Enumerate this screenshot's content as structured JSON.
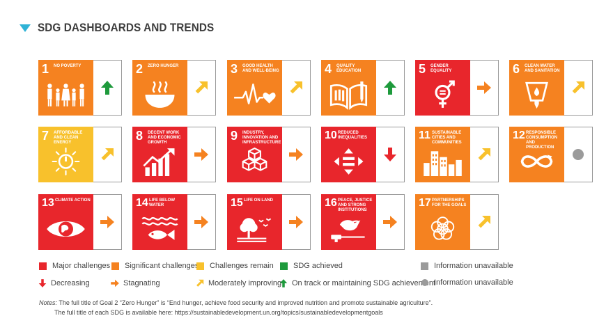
{
  "header": {
    "title": "SDG DASHBOARDS AND TRENDS"
  },
  "colors": {
    "red": "#e8262c",
    "orange": "#f58220",
    "yellow": "#f8c12c",
    "green": "#1e9a3c",
    "grey": "#9b9b9b",
    "sdg1": "#e5243b",
    "sdg2": "#dda63a",
    "sdg3": "#4c9f38",
    "accent": "#2fb3d6"
  },
  "goals": [
    {
      "num": "1",
      "label": "NO POVERTY",
      "status": "orange",
      "trend": "up",
      "icon": "family-icon"
    },
    {
      "num": "2",
      "label": "ZERO HUNGER",
      "status": "orange",
      "trend": "moderate",
      "icon": "bowl-icon"
    },
    {
      "num": "3",
      "label": "GOOD HEALTH AND WELL-BEING",
      "status": "orange",
      "trend": "moderate",
      "icon": "heartbeat-icon"
    },
    {
      "num": "4",
      "label": "QUALITY EDUCATION",
      "status": "orange",
      "trend": "up",
      "icon": "book-icon"
    },
    {
      "num": "5",
      "label": "GENDER EQUALITY",
      "status": "red",
      "trend": "stagnating",
      "icon": "gender-icon"
    },
    {
      "num": "6",
      "label": "CLEAN WATER AND SANITATION",
      "status": "orange",
      "trend": "moderate",
      "icon": "water-icon"
    },
    {
      "num": "7",
      "label": "AFFORDABLE AND CLEAN ENERGY",
      "status": "yellow",
      "trend": "moderate",
      "icon": "sun-power-icon"
    },
    {
      "num": "8",
      "label": "DECENT WORK AND ECONOMIC GROWTH",
      "status": "red",
      "trend": "stagnating",
      "icon": "growth-chart-icon"
    },
    {
      "num": "9",
      "label": "INDUSTRY, INNOVATION AND INFRASTRUCTURE",
      "status": "red",
      "trend": "stagnating",
      "icon": "cubes-icon"
    },
    {
      "num": "10",
      "label": "REDUCED INEQUALITIES",
      "status": "red",
      "trend": "down",
      "icon": "equality-icon"
    },
    {
      "num": "11",
      "label": "SUSTAINABLE CITIES AND COMMUNITIES",
      "status": "orange",
      "trend": "moderate",
      "icon": "city-icon"
    },
    {
      "num": "12",
      "label": "RESPONSIBLE CONSUMPTION AND PRODUCTION",
      "status": "orange",
      "trend": "na",
      "icon": "infinity-icon"
    },
    {
      "num": "13",
      "label": "CLIMATE ACTION",
      "status": "red",
      "trend": "stagnating",
      "icon": "eye-globe-icon"
    },
    {
      "num": "14",
      "label": "LIFE BELOW WATER",
      "status": "red",
      "trend": "stagnating",
      "icon": "fish-icon"
    },
    {
      "num": "15",
      "label": "LIFE ON LAND",
      "status": "red",
      "trend": "stagnating",
      "icon": "tree-birds-icon"
    },
    {
      "num": "16",
      "label": "PEACE, JUSTICE AND STRONG INSTITUTIONS",
      "status": "red",
      "trend": "stagnating",
      "icon": "dove-gavel-icon"
    },
    {
      "num": "17",
      "label": "PARTNERSHIPS FOR THE GOALS",
      "status": "orange",
      "trend": "moderate",
      "icon": "rings-icon"
    }
  ],
  "legend": {
    "major": "Major challenges",
    "significant": "Significant challenges",
    "remain": "Challenges remain",
    "achieved": "SDG achieved",
    "info_box": "Information unavailable",
    "decreasing": "Decreasing",
    "stagnating": "Stagnating",
    "moderate": "Moderately improving",
    "ontrack": "On track or maintaining SDG achievement",
    "info_dot": "Information unavailable"
  },
  "notes": {
    "label": "Notes:",
    "line1": "The full title of Goal 2 “Zero Hunger” is “End hunger, achieve food security and improved nutrition and promote sustainable agriculture”.",
    "line2": "The full title of each SDG is available here: https://sustainabledevelopment.un.org/topics/sustainabledevelopmentgoals"
  }
}
